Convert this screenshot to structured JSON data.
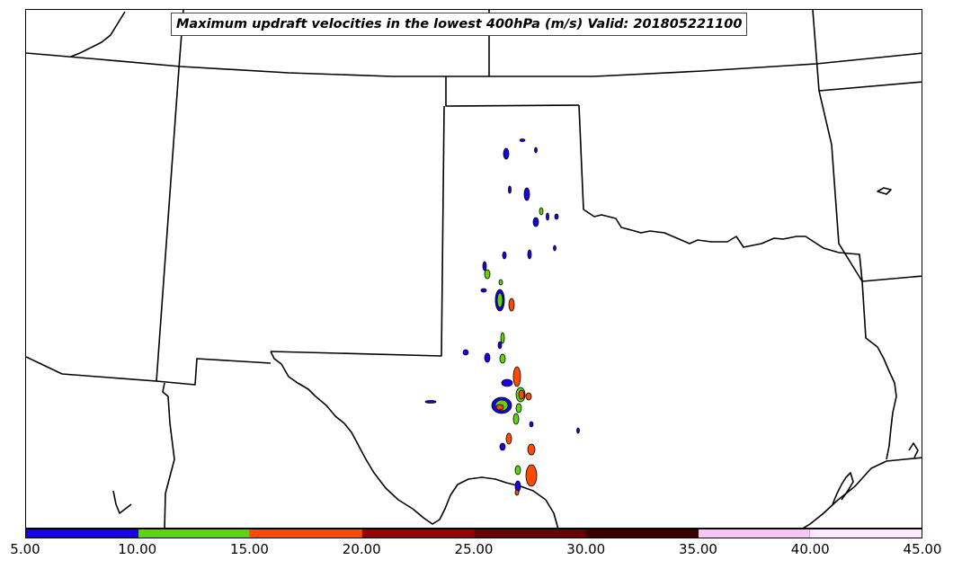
{
  "title": "Maximum updraft velocities in the lowest 400hPa (m/s) Valid: 201805221100",
  "colorbar": {
    "ticks": [
      "5.00",
      "10.00",
      "15.00",
      "20.00",
      "25.00",
      "30.00",
      "35.00",
      "40.00",
      "45.00"
    ],
    "colors": [
      "#1a00e6",
      "#5ed40a",
      "#ff4a00",
      "#9a0000",
      "#6b0000",
      "#3a0000",
      "#f7c6f7",
      "#fde9fd"
    ]
  },
  "map": {
    "background": "#ffffff",
    "boundary_color": "#000000"
  }
}
